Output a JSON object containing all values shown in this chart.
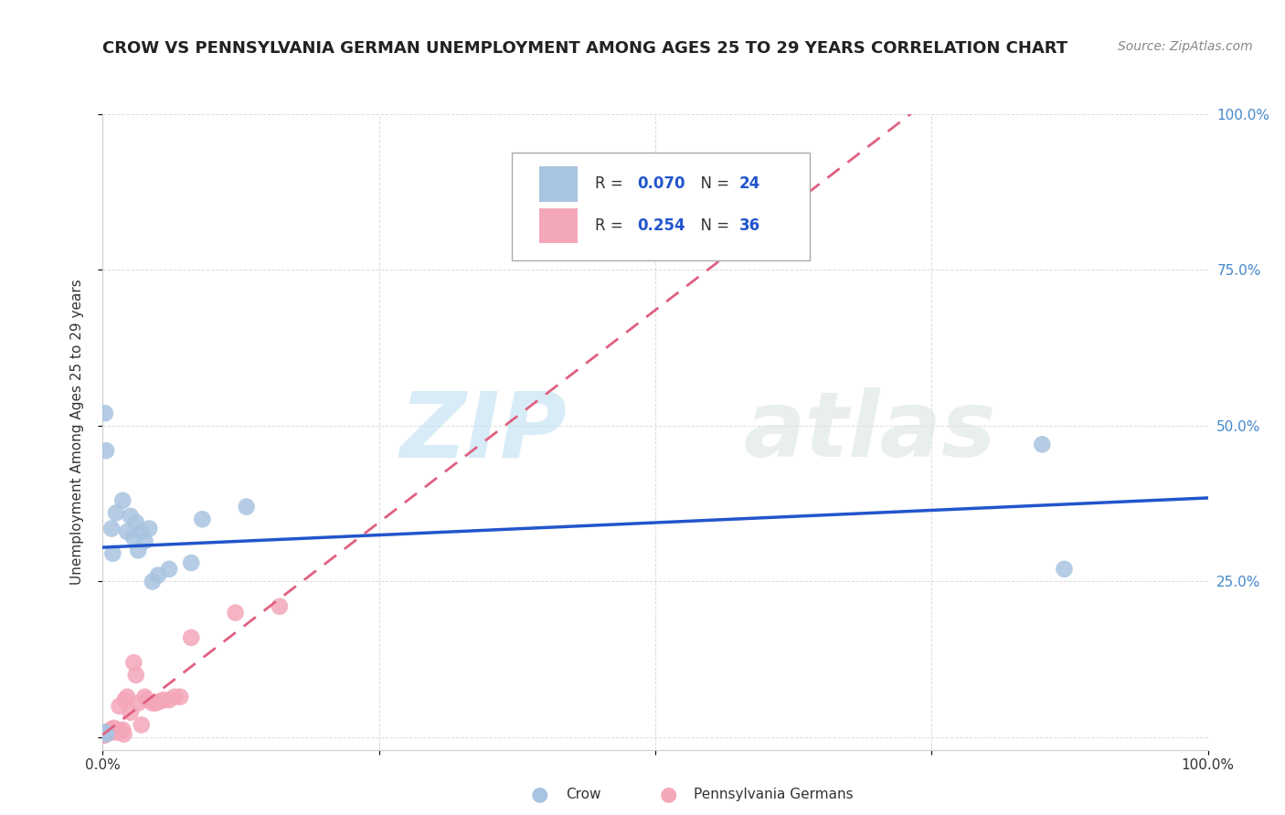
{
  "title": "CROW VS PENNSYLVANIA GERMAN UNEMPLOYMENT AMONG AGES 25 TO 29 YEARS CORRELATION CHART",
  "source": "Source: ZipAtlas.com",
  "ylabel": "Unemployment Among Ages 25 to 29 years",
  "crow_R": 0.07,
  "crow_N": 24,
  "pg_R": 0.254,
  "pg_N": 36,
  "crow_color": "#a8c4e0",
  "pg_color": "#f4a7b9",
  "crow_line_color": "#2255cc",
  "pg_line_color": "#e06080",
  "background_color": "#ffffff",
  "grid_color": "#cccccc",
  "crow_scatter_x": [
    0.002,
    0.003,
    0.008,
    0.009,
    0.012,
    0.018,
    0.022,
    0.025,
    0.028,
    0.03,
    0.032,
    0.035,
    0.038,
    0.042,
    0.045,
    0.05,
    0.06,
    0.08,
    0.09,
    0.13,
    0.002,
    0.003,
    0.85,
    0.87
  ],
  "crow_scatter_y": [
    0.008,
    0.005,
    0.335,
    0.295,
    0.36,
    0.38,
    0.33,
    0.355,
    0.32,
    0.345,
    0.3,
    0.33,
    0.315,
    0.335,
    0.25,
    0.26,
    0.27,
    0.28,
    0.35,
    0.37,
    0.52,
    0.46,
    0.47,
    0.27
  ],
  "pg_scatter_x": [
    0.001,
    0.001,
    0.002,
    0.003,
    0.004,
    0.005,
    0.006,
    0.007,
    0.008,
    0.009,
    0.01,
    0.012,
    0.013,
    0.015,
    0.016,
    0.018,
    0.019,
    0.02,
    0.022,
    0.025,
    0.028,
    0.03,
    0.032,
    0.035,
    0.038,
    0.04,
    0.045,
    0.048,
    0.052,
    0.055,
    0.06,
    0.065,
    0.07,
    0.08,
    0.12,
    0.16
  ],
  "pg_scatter_y": [
    0.003,
    0.005,
    0.004,
    0.006,
    0.008,
    0.007,
    0.01,
    0.008,
    0.013,
    0.01,
    0.015,
    0.012,
    0.008,
    0.05,
    0.01,
    0.012,
    0.005,
    0.06,
    0.065,
    0.04,
    0.12,
    0.1,
    0.055,
    0.02,
    0.065,
    0.06,
    0.055,
    0.055,
    0.058,
    0.06,
    0.06,
    0.065,
    0.065,
    0.16,
    0.2,
    0.21
  ],
  "xlim": [
    0.0,
    1.0
  ],
  "ylim": [
    -0.02,
    1.0
  ],
  "right_yticks": [
    0.0,
    0.25,
    0.5,
    0.75,
    1.0
  ],
  "right_yticklabels": [
    "",
    "25.0%",
    "50.0%",
    "75.0%",
    "100.0%"
  ],
  "xticks": [
    0.0,
    0.25,
    0.5,
    0.75,
    1.0
  ],
  "xticklabels": [
    "0.0%",
    "",
    "",
    "",
    "100.0%"
  ],
  "watermark_zip": "ZIP",
  "watermark_atlas": "atlas",
  "title_fontsize": 13,
  "legend_fontsize": 12,
  "axis_fontsize": 11,
  "right_tick_color": "#4488cc"
}
